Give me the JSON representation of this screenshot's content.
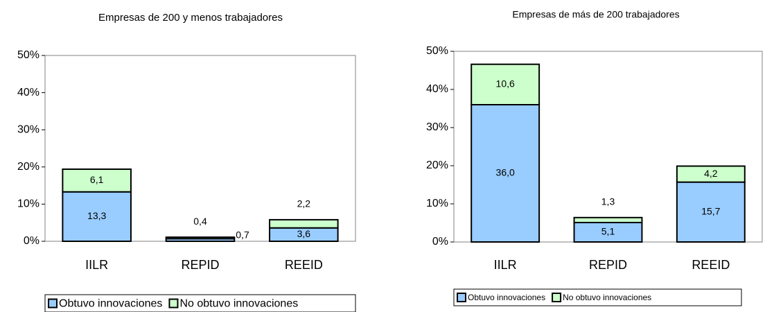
{
  "chart_data": [
    {
      "type": "bar",
      "stacked": true,
      "title": "Empresas de 200 y menos trabajadores",
      "categories": [
        "IILR",
        "REPID",
        "REEID"
      ],
      "series": [
        {
          "name": "Obtuvo innovaciones",
          "color": "#99ccff",
          "values": [
            13.3,
            0.7,
            3.6
          ],
          "value_labels": [
            "13,3",
            "0,7",
            "3,6"
          ]
        },
        {
          "name": "No obtuvo innovaciones",
          "color": "#ccffcc",
          "values": [
            6.1,
            0.4,
            2.2
          ],
          "value_labels": [
            "6,1",
            "0,4",
            "2,2"
          ]
        }
      ],
      "ylim": [
        0,
        50
      ],
      "yticks": [
        {
          "value": 0,
          "label": "0%"
        },
        {
          "value": 10,
          "label": "10%"
        },
        {
          "value": 20,
          "label": "20%"
        },
        {
          "value": 30,
          "label": "30%"
        },
        {
          "value": 40,
          "label": "40%"
        },
        {
          "value": 50,
          "label": "50%"
        }
      ],
      "legend": "bottom"
    },
    {
      "type": "bar",
      "stacked": true,
      "title": "Empresas de más de 200 trabajadores",
      "categories": [
        "IILR",
        "REPID",
        "REEID"
      ],
      "series": [
        {
          "name": "Obtuvo innovaciones",
          "color": "#99ccff",
          "values": [
            36.0,
            5.1,
            15.7
          ],
          "value_labels": [
            "36,0",
            "5,1",
            "15,7"
          ]
        },
        {
          "name": "No obtuvo innovaciones",
          "color": "#ccffcc",
          "values": [
            10.6,
            1.3,
            4.2
          ],
          "value_labels": [
            "10,6",
            "1,3",
            "4,2"
          ]
        }
      ],
      "ylim": [
        0,
        50
      ],
      "yticks": [
        {
          "value": 0,
          "label": "0%"
        },
        {
          "value": 10,
          "label": "10%"
        },
        {
          "value": 20,
          "label": "20%"
        },
        {
          "value": 30,
          "label": "30%"
        },
        {
          "value": 40,
          "label": "40%"
        },
        {
          "value": 50,
          "label": "50%"
        }
      ],
      "legend": "bottom"
    }
  ]
}
